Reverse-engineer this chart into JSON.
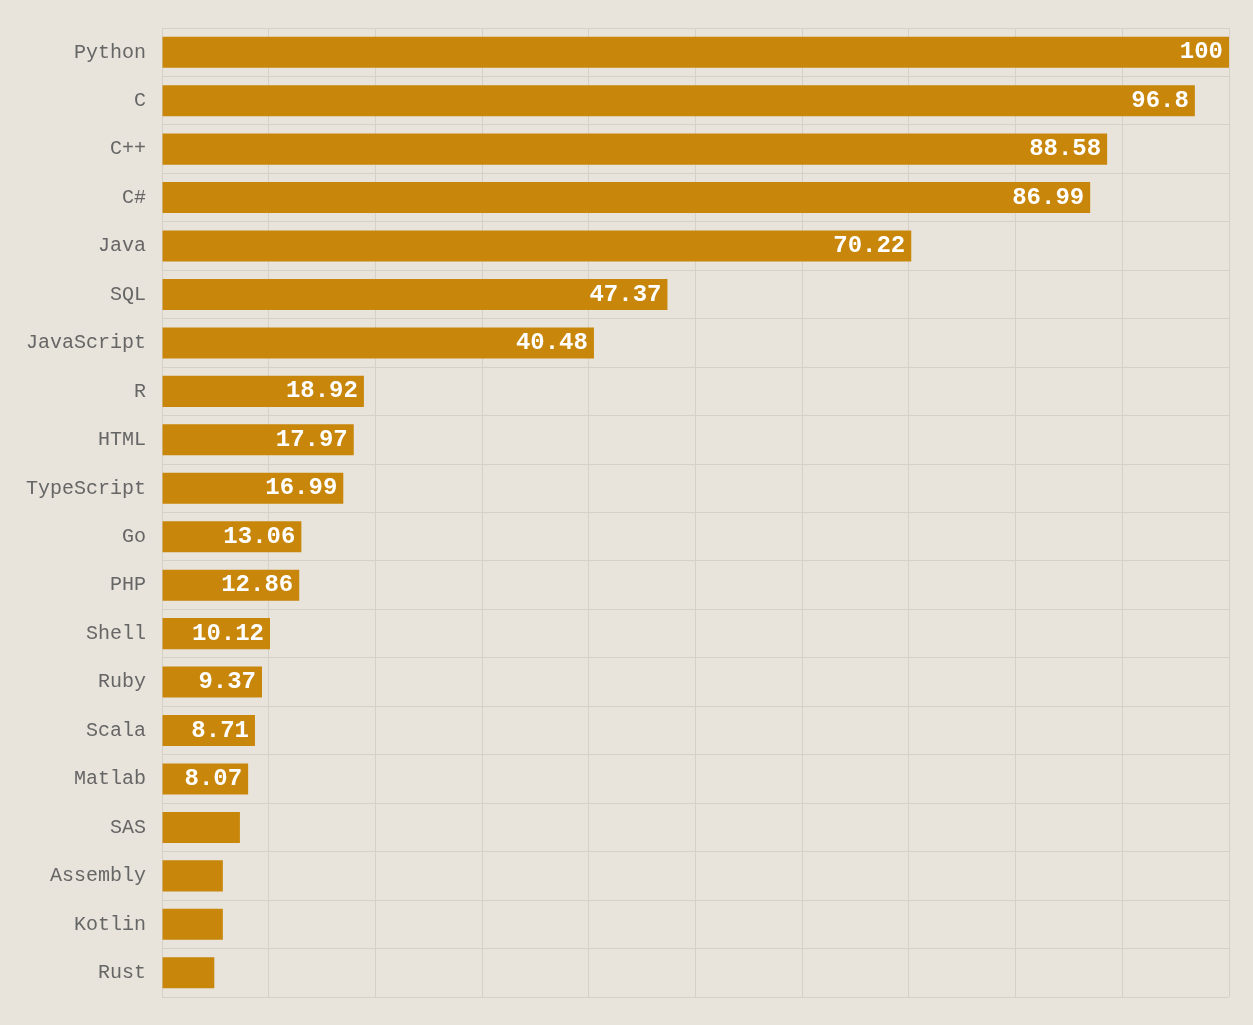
{
  "chart_data": {
    "type": "bar",
    "orientation": "horizontal",
    "categories": [
      "Python",
      "C",
      "C++",
      "C#",
      "Java",
      "SQL",
      "JavaScript",
      "R",
      "HTML",
      "TypeScript",
      "Go",
      "PHP",
      "Shell",
      "Ruby",
      "Scala",
      "Matlab",
      "SAS",
      "Assembly",
      "Kotlin",
      "Rust"
    ],
    "values": [
      100,
      96.8,
      88.58,
      86.99,
      70.22,
      47.37,
      40.48,
      18.92,
      17.97,
      16.99,
      13.06,
      12.86,
      10.12,
      9.37,
      8.71,
      8.07,
      7.3,
      5.7,
      5.7,
      4.9
    ],
    "value_labels": [
      "100",
      "96.8",
      "88.58",
      "86.99",
      "70.22",
      "47.37",
      "40.48",
      "18.92",
      "17.97",
      "16.99",
      "13.06",
      "12.86",
      "10.12",
      "9.37",
      "8.71",
      "8.07",
      null,
      null,
      null,
      null
    ],
    "color": "#c8860a",
    "xlim": [
      0,
      100
    ],
    "xticks": [
      {
        "value": 0,
        "label": null
      },
      {
        "value": 10,
        "label": null
      },
      {
        "value": 20,
        "label": null
      },
      {
        "value": 30,
        "label": null
      },
      {
        "value": 40,
        "label": null
      },
      {
        "value": 50,
        "label": null
      },
      {
        "value": 60,
        "label": null
      },
      {
        "value": 70,
        "label": null
      },
      {
        "value": 80,
        "label": null
      },
      {
        "value": 90,
        "label": null
      },
      {
        "value": 100,
        "label": null
      }
    ],
    "tick_labels": "y",
    "grid": true,
    "legend": false
  }
}
